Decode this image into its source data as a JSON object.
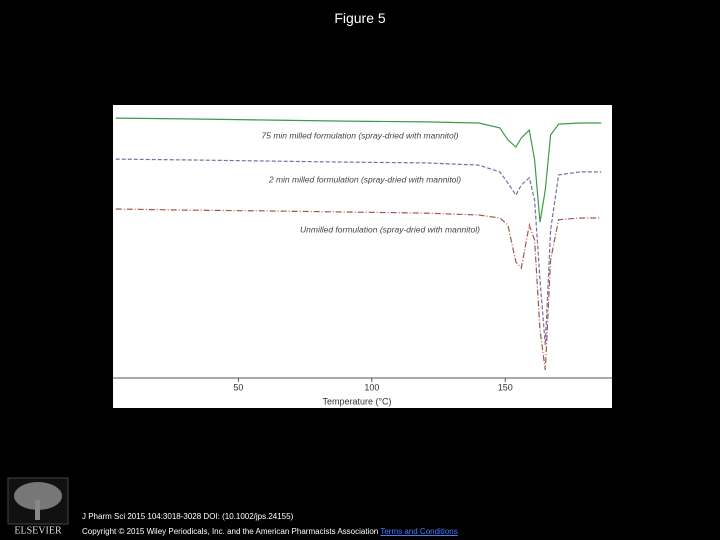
{
  "header": {
    "title": "Figure 5"
  },
  "chart_data": {
    "type": "line",
    "x_label": "Temperature (°C)",
    "x": [
      4,
      30,
      60,
      90,
      120,
      140,
      148,
      151,
      154,
      156,
      159,
      161,
      163,
      165,
      167,
      170,
      178,
      186
    ],
    "xlim": [
      3,
      190
    ],
    "xticks": [
      50,
      100,
      150
    ],
    "ylim": [
      0,
      100
    ],
    "grid": false,
    "series": [
      {
        "name": "75 min milled formulation (spray-dried with mannitol)",
        "color": "#3f9a45",
        "dash": "solid",
        "values": [
          95.2,
          94.9,
          94.5,
          94.1,
          93.8,
          93.4,
          91.6,
          87.2,
          84.6,
          87.9,
          90.8,
          79.9,
          57.1,
          68.9,
          89.0,
          93.0,
          93.4,
          93.4
        ]
      },
      {
        "name": "2 min milled formulation (spray-dried with mannitol)",
        "color": "#7b6ea3",
        "dash": "dashed",
        "values": [
          80.2,
          79.9,
          79.5,
          79.1,
          78.8,
          78.0,
          75.5,
          71.4,
          67.0,
          70.7,
          73.3,
          65.2,
          35.9,
          12.1,
          54.2,
          74.4,
          75.5,
          75.5
        ]
      },
      {
        "name": "Unmilled formulation (spray-dried with mannitol)",
        "color": "#a4564e",
        "dash": "dashdot",
        "values": [
          61.9,
          61.5,
          61.2,
          60.8,
          60.4,
          59.7,
          58.6,
          56.0,
          42.5,
          40.3,
          56.0,
          50.5,
          17.6,
          2.9,
          43.2,
          58.0,
          58.6,
          58.6
        ]
      }
    ]
  },
  "footer": {
    "logo": "ELSEVIER",
    "citation": "J Pharm Sci 2015 104:3018-3028 DOI: (10.1002/jps.24155)",
    "copyright": "Copyright © 2015 Wiley Periodicals, Inc. and the American Pharmacists Association",
    "link": "Terms and Conditions"
  }
}
